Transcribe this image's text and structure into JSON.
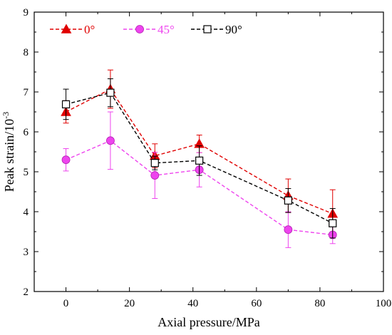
{
  "chart_data": {
    "type": "line",
    "xlabel": "Axial pressure/MPa",
    "ylabel_base": "Peak strain/10",
    "ylabel_sup": "-3",
    "xlim": [
      -10,
      100
    ],
    "ylim": [
      2,
      9
    ],
    "x_ticks": [
      0,
      20,
      40,
      60,
      80,
      100
    ],
    "y_ticks": [
      2,
      3,
      4,
      5,
      6,
      7,
      8,
      9
    ],
    "grid": false,
    "legend_position": "top",
    "x": [
      0,
      14,
      28,
      42,
      70,
      84
    ],
    "series": [
      {
        "name": "0°",
        "color": "#e00000",
        "marker": "triangle-filled",
        "values": [
          6.5,
          7.07,
          5.4,
          5.7,
          4.4,
          3.95
        ],
        "error": [
          0.28,
          0.48,
          0.3,
          0.22,
          0.42,
          0.6
        ]
      },
      {
        "name": "45°",
        "color": "#ee44ee",
        "marker": "circle-filled",
        "values": [
          5.3,
          5.78,
          4.91,
          5.05,
          3.55,
          3.42
        ],
        "error": [
          0.28,
          0.72,
          0.58,
          0.43,
          0.45,
          0.22
        ]
      },
      {
        "name": "90°",
        "color": "#000000",
        "marker": "square-open",
        "values": [
          6.69,
          6.98,
          5.22,
          5.28,
          4.28,
          3.71
        ],
        "error": [
          0.38,
          0.35,
          0.17,
          0.37,
          0.3,
          0.37
        ]
      }
    ]
  }
}
